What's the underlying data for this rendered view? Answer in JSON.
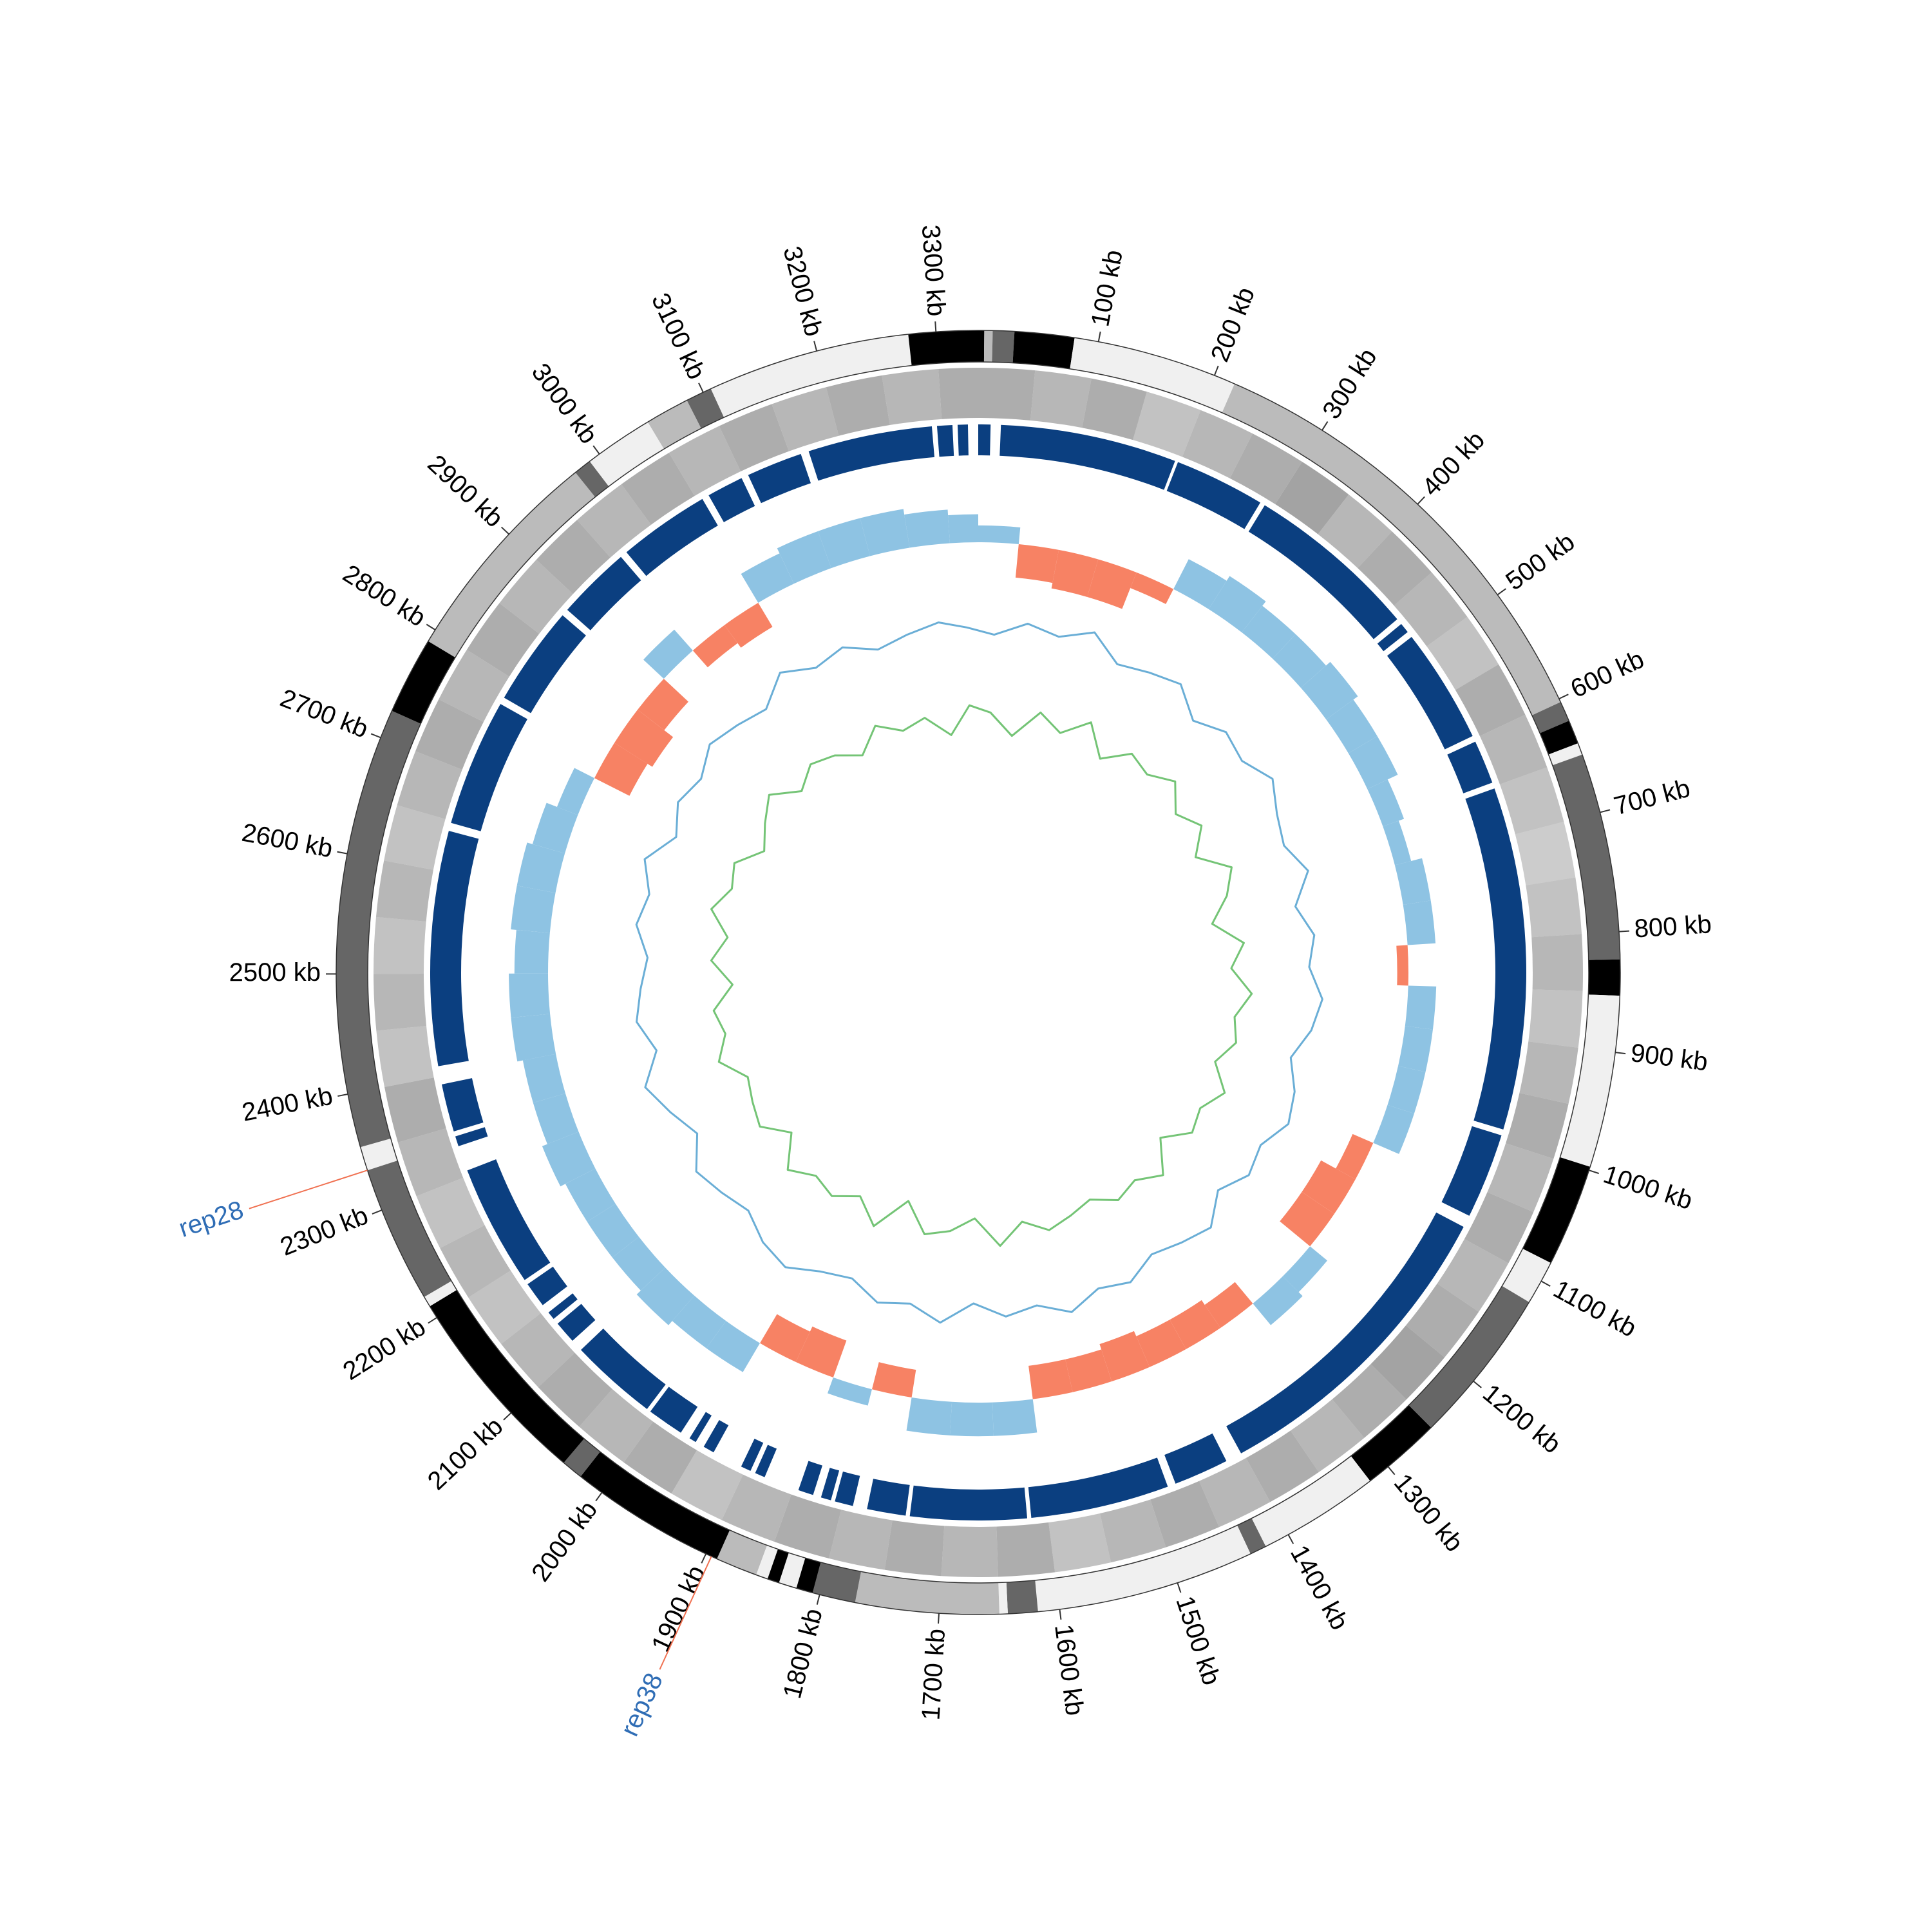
{
  "chart_data": {
    "type": "circular",
    "xlim": [
      0,
      3335
    ],
    "xticks": [
      {
        "value": 100,
        "label": "100 kb"
      },
      {
        "value": 200,
        "label": "200 kb"
      },
      {
        "value": 300,
        "label": "300 kb"
      },
      {
        "value": 400,
        "label": "400 kb"
      },
      {
        "value": 500,
        "label": "500 kb"
      },
      {
        "value": 600,
        "label": "600 kb"
      },
      {
        "value": 700,
        "label": "700 kb"
      },
      {
        "value": 800,
        "label": "800 kb"
      },
      {
        "value": 900,
        "label": "900 kb"
      },
      {
        "value": 1000,
        "label": "1000 kb"
      },
      {
        "value": 1100,
        "label": "1100 kb"
      },
      {
        "value": 1200,
        "label": "1200 kb"
      },
      {
        "value": 1300,
        "label": "1300 kb"
      },
      {
        "value": 1400,
        "label": "1400 kb"
      },
      {
        "value": 1500,
        "label": "1500 kb"
      },
      {
        "value": 1600,
        "label": "1600 kb"
      },
      {
        "value": 1700,
        "label": "1700 kb"
      },
      {
        "value": 1800,
        "label": "1800 kb"
      },
      {
        "value": 1900,
        "label": "1900 kb"
      },
      {
        "value": 2000,
        "label": "2000 kb"
      },
      {
        "value": 2100,
        "label": "2100 kb"
      },
      {
        "value": 2200,
        "label": "2200 kb"
      },
      {
        "value": 2300,
        "label": "2300 kb"
      },
      {
        "value": 2400,
        "label": "2400 kb"
      },
      {
        "value": 2500,
        "label": "2500 kb"
      },
      {
        "value": 2600,
        "label": "2600 kb"
      },
      {
        "value": 2700,
        "label": "2700 kb"
      },
      {
        "value": 2800,
        "label": "2800 kb"
      },
      {
        "value": 2900,
        "label": "2900 kb"
      },
      {
        "value": 3000,
        "label": "3000 kb"
      },
      {
        "value": 3100,
        "label": "3100 kb"
      },
      {
        "value": 3200,
        "label": "3200 kb"
      },
      {
        "value": 3300,
        "label": "3300 kb"
      }
    ],
    "bands": [
      {
        "start": 0,
        "end": 5,
        "color": "#000000"
      },
      {
        "start": 5,
        "end": 12,
        "color": "#bbbbbb"
      },
      {
        "start": 12,
        "end": 30,
        "color": "#666666"
      },
      {
        "start": 30,
        "end": 80,
        "color": "#000000"
      },
      {
        "start": 80,
        "end": 218,
        "color": "#f0f0f0"
      },
      {
        "start": 218,
        "end": 603,
        "color": "#bbbbbb"
      },
      {
        "start": 603,
        "end": 620,
        "color": "#666666"
      },
      {
        "start": 620,
        "end": 640,
        "color": "#000000"
      },
      {
        "start": 640,
        "end": 650,
        "color": "#f0f0f0"
      },
      {
        "start": 650,
        "end": 823,
        "color": "#666666"
      },
      {
        "start": 823,
        "end": 853,
        "color": "#000000"
      },
      {
        "start": 853,
        "end": 997,
        "color": "#f0f0f0"
      },
      {
        "start": 997,
        "end": 1083,
        "color": "#000000"
      },
      {
        "start": 1083,
        "end": 1120,
        "color": "#f0f0f0"
      },
      {
        "start": 1120,
        "end": 1252,
        "color": "#666666"
      },
      {
        "start": 1252,
        "end": 1319,
        "color": "#000000"
      },
      {
        "start": 1319,
        "end": 1421,
        "color": "#f0f0f0"
      },
      {
        "start": 1421,
        "end": 1435,
        "color": "#666666"
      },
      {
        "start": 1435,
        "end": 1618,
        "color": "#f0f0f0"
      },
      {
        "start": 1618,
        "end": 1643,
        "color": "#666666"
      },
      {
        "start": 1643,
        "end": 1650,
        "color": "#f0f0f0"
      },
      {
        "start": 1650,
        "end": 1770,
        "color": "#bbbbbb"
      },
      {
        "start": 1770,
        "end": 1806,
        "color": "#666666"
      },
      {
        "start": 1806,
        "end": 1820,
        "color": "#000000"
      },
      {
        "start": 1820,
        "end": 1835,
        "color": "#f0f0f0"
      },
      {
        "start": 1835,
        "end": 1845,
        "color": "#000000"
      },
      {
        "start": 1845,
        "end": 1855,
        "color": "#f0f0f0"
      },
      {
        "start": 1855,
        "end": 1890,
        "color": "#bbbbbb"
      },
      {
        "start": 1890,
        "end": 2022,
        "color": "#000000"
      },
      {
        "start": 2022,
        "end": 2040,
        "color": "#666666"
      },
      {
        "start": 2040,
        "end": 2211,
        "color": "#000000"
      },
      {
        "start": 2211,
        "end": 2220,
        "color": "#f0f0f0"
      },
      {
        "start": 2220,
        "end": 2335,
        "color": "#666666"
      },
      {
        "start": 2335,
        "end": 2355,
        "color": "#f0f0f0"
      },
      {
        "start": 2355,
        "end": 2724,
        "color": "#666666"
      },
      {
        "start": 2724,
        "end": 2789,
        "color": "#000000"
      },
      {
        "start": 2789,
        "end": 2975,
        "color": "#bbbbbb"
      },
      {
        "start": 2975,
        "end": 2990,
        "color": "#666666"
      },
      {
        "start": 2990,
        "end": 3048,
        "color": "#f0f0f0"
      },
      {
        "start": 3048,
        "end": 3085,
        "color": "#bbbbbb"
      },
      {
        "start": 3085,
        "end": 3107,
        "color": "#666666"
      },
      {
        "start": 3107,
        "end": 3277,
        "color": "#f0f0f0"
      },
      {
        "start": 3277,
        "end": 3335,
        "color": "#000000"
      }
    ],
    "blocks": {
      "color": "#0b3f80",
      "values": [
        [
          0,
          12
        ],
        [
          22,
          195
        ],
        [
          198,
          287
        ],
        [
          292,
          462
        ],
        [
          468,
          478
        ],
        [
          484,
          597
        ],
        [
          603,
          646
        ],
        [
          652,
          988
        ],
        [
          994,
          1078
        ],
        [
          1090,
          1402
        ],
        [
          1418,
          1472
        ],
        [
          1480,
          1616
        ],
        [
          1620,
          1734
        ],
        [
          1738,
          1776
        ],
        [
          1790,
          1808
        ],
        [
          1812,
          1822
        ],
        [
          1830,
          1845
        ],
        [
          1880,
          1890
        ],
        [
          1895,
          1905
        ],
        [
          1935,
          1946
        ],
        [
          1955,
          1962
        ],
        [
          1972,
          2008
        ],
        [
          2012,
          2098
        ],
        [
          2110,
          2132
        ],
        [
          2138,
          2146
        ],
        [
          2155,
          2180
        ],
        [
          2185,
          2305
        ],
        [
          2330,
          2340
        ],
        [
          2345,
          2392
        ],
        [
          2410,
          2640
        ],
        [
          2648,
          2773
        ],
        [
          2780,
          2878
        ],
        [
          2885,
          2958
        ],
        [
          2965,
          3055
        ],
        [
          3062,
          3098
        ],
        [
          3105,
          3160
        ],
        [
          3168,
          3290
        ],
        [
          3295,
          3310
        ],
        [
          3315,
          3325
        ]
      ]
    },
    "bins": [
      0,
      50,
      100,
      150,
      200,
      250,
      300,
      350,
      400,
      450,
      500,
      550,
      600,
      650,
      700,
      750,
      800,
      850,
      900,
      950,
      1000,
      1050,
      1100,
      1150,
      1200,
      1250,
      1300,
      1350,
      1400,
      1450,
      1500,
      1550,
      1600,
      1650,
      1700,
      1750,
      1800,
      1850,
      1900,
      1950,
      2000,
      2050,
      2100,
      2150,
      2200,
      2250,
      2300,
      2350,
      2400,
      2450,
      2500,
      2550,
      2600,
      2650,
      2700,
      2750,
      2800,
      2850,
      2900,
      2950,
      3000,
      3050,
      3100,
      3150,
      3200,
      3250,
      3300,
      3335
    ],
    "gene_density": {
      "color": "#999999",
      "values": [
        0.8,
        0.7,
        0.8,
        0.6,
        0.7,
        0.8,
        0.9,
        0.7,
        0.8,
        0.7,
        0.6,
        0.8,
        0.7,
        0.6,
        0.5,
        0.6,
        0.7,
        0.6,
        0.7,
        0.8,
        0.7,
        0.8,
        0.7,
        0.8,
        0.9,
        0.8,
        0.7,
        0.8,
        0.7,
        0.8,
        0.7,
        0.6,
        0.8,
        0.7,
        0.8,
        0.7,
        0.8,
        0.7,
        0.6,
        0.8,
        0.7,
        0.8,
        0.7,
        0.6,
        0.7,
        0.6,
        0.7,
        0.8,
        0.6,
        0.7,
        0.6,
        0.7,
        0.6,
        0.7,
        0.8,
        0.7,
        0.8,
        0.7,
        0.8,
        0.7,
        0.8,
        0.7,
        0.8,
        0.7,
        0.8,
        0.7,
        0.8
      ]
    },
    "skew": {
      "color": "#8ec3e3",
      "negative_color": "#f78264",
      "ylim": [
        -1,
        1
      ],
      "values": [
        0.3,
        -0.6,
        -0.7,
        -0.7,
        -0.3,
        0.6,
        0.7,
        0.6,
        0.6,
        0.7,
        0.6,
        0.6,
        0.4,
        0.3,
        0.5,
        0.5,
        -0.2,
        0.5,
        0.5,
        0.5,
        0.5,
        -0.4,
        -0.7,
        -0.7,
        0.4,
        0.5,
        -0.5,
        -0.6,
        -0.6,
        -0.7,
        -0.6,
        -0.6,
        0.6,
        0.6,
        0.6,
        -0.5,
        0.3,
        -0.7,
        -0.6,
        0.6,
        0.6,
        0.7,
        0.6,
        0.6,
        0.6,
        0.7,
        0.6,
        0.6,
        0.7,
        0.7,
        0.6,
        0.7,
        0.7,
        0.6,
        0.4,
        -0.7,
        -0.8,
        -0.6,
        0.5,
        -0.4,
        -0.5,
        0.6,
        0.7,
        0.7,
        0.7,
        0.6,
        0.5
      ]
    },
    "gc": {
      "ylim": [
        -1,
        1
      ],
      "series": [
        {
          "color": "#6aaed6",
          "values": [
            0.5,
            0.7,
            0.6,
            0.8,
            0.5,
            0.6,
            0.7,
            0.4,
            0.6,
            0.5,
            0.7,
            0.5,
            0.4,
            0.6,
            0.3,
            0.5,
            0.4,
            0.6,
            0.5,
            0.3,
            0.5,
            0.6,
            0.4,
            0.5,
            0.3,
            0.6,
            0.5,
            0.4,
            0.6,
            0.5,
            0.7,
            0.5,
            0.6,
            0.4,
            0.7,
            0.5,
            0.6,
            0.4,
            0.5,
            0.7,
            0.6,
            0.4,
            0.5,
            0.6,
            0.3,
            0.5,
            0.7,
            0.4,
            0.6,
            0.5,
            0.4,
            0.6,
            0.5,
            0.7,
            0.4,
            0.6,
            0.5,
            0.7,
            0.6,
            0.5,
            0.8,
            0.6,
            0.7,
            0.5,
            0.6,
            0.7,
            0.6
          ]
        },
        {
          "color": "#74c476",
          "values": [
            -0.6,
            -0.9,
            -0.5,
            -0.7,
            -0.4,
            -0.8,
            -0.5,
            -0.6,
            -0.4,
            -0.7,
            -0.5,
            -0.8,
            -0.4,
            -0.6,
            -0.9,
            -0.5,
            -0.7,
            -0.4,
            -0.6,
            -0.5,
            -0.7,
            -0.4,
            -0.6,
            -0.5,
            -0.8,
            -0.4,
            -0.6,
            -0.5,
            -0.7,
            -0.6,
            -0.5,
            -0.7,
            -0.4,
            -0.8,
            -0.6,
            -0.5,
            -0.9,
            -0.4,
            -0.7,
            -0.5,
            -0.6,
            -0.4,
            -0.8,
            -0.5,
            -0.6,
            -0.7,
            -0.4,
            -0.6,
            -0.5,
            -0.8,
            -0.5,
            -0.7,
            -0.4,
            -0.6,
            -0.5,
            -0.8,
            -0.6,
            -0.4,
            -0.7,
            -0.5,
            -0.6,
            -0.8,
            -0.5,
            -0.7,
            -0.6,
            -0.9,
            -0.5
          ]
        }
      ]
    },
    "annotations": [
      {
        "text": "rep28",
        "position": 2335,
        "color": "#2f6db5",
        "line_color": "#f07050"
      },
      {
        "text": "rep38",
        "position": 1895,
        "color": "#2f6db5",
        "line_color": "#f07050"
      }
    ]
  }
}
